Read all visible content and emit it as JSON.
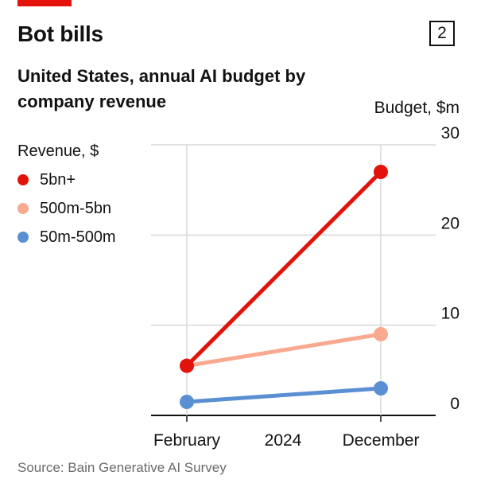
{
  "header": {
    "title": "Bot bills",
    "chart_number": "2",
    "subtitle": "United States, annual AI budget by company revenue",
    "source": "Source: Bain Generative AI Survey"
  },
  "legend": {
    "title": "Revenue, $"
  },
  "colors": {
    "accent": "#e3120b",
    "gridline": "#d9d9d9",
    "axis": "#121212"
  },
  "chart_data": {
    "type": "line",
    "x": [
      "February",
      "December"
    ],
    "year_label": "2024",
    "ylabel": "Budget, $m",
    "ylim": [
      0,
      30
    ],
    "yticks": [
      "0",
      "10",
      "20",
      "30"
    ],
    "grid": true,
    "legend_position": "left",
    "series": [
      {
        "name": "5bn+",
        "values": [
          5.5,
          27
        ],
        "color": "#e3120b"
      },
      {
        "name": "500m-5bn",
        "values": [
          5.5,
          9
        ],
        "color": "#f9a98f"
      },
      {
        "name": "50m-500m",
        "values": [
          1.5,
          3
        ],
        "color": "#5b8fd4"
      }
    ]
  }
}
